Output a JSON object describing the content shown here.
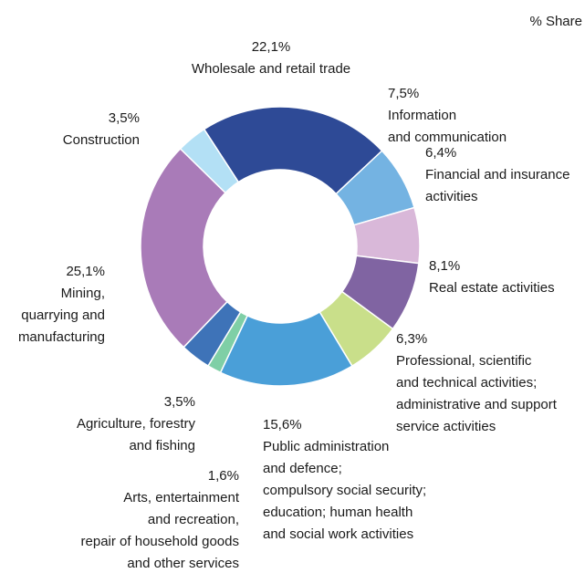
{
  "chart_data": {
    "type": "donut",
    "title": "% Share",
    "categories": [
      "Wholesale and retail trade",
      "Information\nand communication",
      "Financial and insurance\nactivities",
      "Real estate activities",
      "Professional, scientific\nand technical activities;\nadministrative and support\nservice activities",
      "Public administration\nand defence;\ncompulsory social security;\neducation; human health\nand social work activities",
      "Arts, entertainment\nand recreation,\nrepair of household goods\nand other services",
      "Agriculture, forestry\nand fishing",
      "Mining,\nquarrying and\nmanufacturing",
      "Construction"
    ],
    "values": [
      22.1,
      7.5,
      6.4,
      8.1,
      6.3,
      15.6,
      1.6,
      3.5,
      25.1,
      3.5
    ],
    "value_labels": [
      "22,1%",
      "7,5%",
      "6,4%",
      "8,1%",
      "6,3%",
      "15,6%",
      "1,6%",
      "3,5%",
      "25,1%",
      "3,5%"
    ],
    "colors": [
      "#2e4a96",
      "#74b3e2",
      "#d9b8d9",
      "#8064a2",
      "#c9df8a",
      "#4a9fd8",
      "#7fcfa6",
      "#3e73b8",
      "#a97bb8",
      "#b3e0f5"
    ]
  }
}
